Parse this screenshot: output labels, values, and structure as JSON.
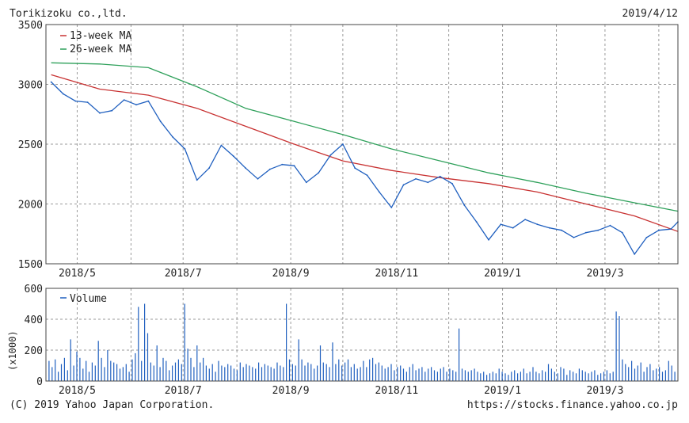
{
  "header": {
    "company": "Torikizoku co.,ltd.",
    "date": "2019/4/12"
  },
  "footer": {
    "copyright": "(C) 2019 Yahoo Japan Corporation.",
    "url": "https://stocks.finance.yahoo.co.jp"
  },
  "colors": {
    "price": "#1f5fbf",
    "ma13": "#c83232",
    "ma26": "#2ea05a",
    "volume": "#1f5fbf",
    "grid": "#9a9a9a",
    "frame": "#444444"
  },
  "chart_data": [
    {
      "type": "line",
      "x_tick_labels": [
        "2018/5",
        "2018/7",
        "2018/9",
        "2018/11",
        "2019/1",
        "2019/3"
      ],
      "yticks": [
        "1500",
        "2000",
        "2500",
        "3000",
        "3500"
      ],
      "ylim": [
        1500,
        3500
      ],
      "legend_position": "top-left",
      "grid": true,
      "series": [
        {
          "name": "price",
          "dates": [
            "2018/4/16",
            "2018/4/23",
            "2018/4/30",
            "2018/5/7",
            "2018/5/14",
            "2018/5/21",
            "2018/5/28",
            "2018/6/4",
            "2018/6/11",
            "2018/6/18",
            "2018/6/25",
            "2018/7/2",
            "2018/7/9",
            "2018/7/16",
            "2018/7/23",
            "2018/7/30",
            "2018/8/6",
            "2018/8/13",
            "2018/8/20",
            "2018/8/27",
            "2018/9/3",
            "2018/9/10",
            "2018/9/17",
            "2018/9/24",
            "2018/10/1",
            "2018/10/8",
            "2018/10/15",
            "2018/10/22",
            "2018/10/29",
            "2018/11/5",
            "2018/11/12",
            "2018/11/19",
            "2018/11/26",
            "2018/12/3",
            "2018/12/10",
            "2018/12/17",
            "2018/12/24",
            "2018/12/31",
            "2019/1/7",
            "2019/1/14",
            "2019/1/21",
            "2019/1/28",
            "2019/2/4",
            "2019/2/11",
            "2019/2/18",
            "2019/2/25",
            "2019/3/4",
            "2019/3/11",
            "2019/3/18",
            "2019/3/25",
            "2019/4/1",
            "2019/4/8",
            "2019/4/12"
          ],
          "values": [
            3020,
            2920,
            2860,
            2850,
            2760,
            2780,
            2870,
            2830,
            2860,
            2690,
            2560,
            2460,
            2200,
            2300,
            2490,
            2400,
            2300,
            2210,
            2290,
            2330,
            2320,
            2180,
            2260,
            2410,
            2500,
            2300,
            2240,
            2100,
            1970,
            2160,
            2210,
            2180,
            2230,
            2170,
            1990,
            1850,
            1700,
            1830,
            1800,
            1870,
            1830,
            1800,
            1780,
            1720,
            1760,
            1780,
            1820,
            1760,
            1580,
            1720,
            1780,
            1790,
            1850
          ]
        },
        {
          "name": "13-week MA",
          "dates": [
            "2018/4/16",
            "2018/5/14",
            "2018/6/11",
            "2018/7/9",
            "2018/8/6",
            "2018/9/3",
            "2018/10/1",
            "2018/10/29",
            "2018/11/26",
            "2018/12/24",
            "2019/1/21",
            "2019/2/18",
            "2019/3/18",
            "2019/4/12"
          ],
          "values": [
            3080,
            2960,
            2910,
            2800,
            2650,
            2500,
            2360,
            2280,
            2220,
            2170,
            2100,
            2000,
            1900,
            1770
          ]
        },
        {
          "name": "26-week MA",
          "dates": [
            "2018/4/16",
            "2018/5/14",
            "2018/6/11",
            "2018/7/9",
            "2018/8/6",
            "2018/9/3",
            "2018/10/1",
            "2018/10/29",
            "2018/11/26",
            "2018/12/24",
            "2019/1/21",
            "2019/2/18",
            "2019/3/18",
            "2019/4/12"
          ],
          "values": [
            3180,
            3170,
            3140,
            2980,
            2800,
            2690,
            2580,
            2460,
            2360,
            2260,
            2180,
            2090,
            2010,
            1940
          ]
        }
      ]
    },
    {
      "type": "bar",
      "x_tick_labels": [
        "2018/5",
        "2018/7",
        "2018/9",
        "2018/11",
        "2019/1",
        "2019/3"
      ],
      "yticks": [
        "0",
        "200",
        "400",
        "600"
      ],
      "ylabel": "(x1000)",
      "ylim": [
        0,
        600
      ],
      "legend_position": "top-left",
      "grid": true,
      "series": [
        {
          "name": "Volume",
          "values": [
            130,
            90,
            140,
            60,
            110,
            150,
            70,
            270,
            100,
            190,
            150,
            80,
            130,
            60,
            120,
            100,
            260,
            150,
            90,
            200,
            130,
            120,
            110,
            80,
            90,
            110,
            60,
            140,
            180,
            480,
            130,
            500,
            310,
            120,
            100,
            230,
            90,
            150,
            130,
            70,
            100,
            120,
            140,
            110,
            500,
            210,
            150,
            90,
            230,
            120,
            150,
            100,
            80,
            110,
            60,
            130,
            100,
            90,
            110,
            100,
            80,
            70,
            120,
            90,
            110,
            100,
            90,
            80,
            120,
            90,
            110,
            100,
            90,
            80,
            120,
            100,
            90,
            500,
            140,
            110,
            100,
            270,
            140,
            100,
            120,
            110,
            80,
            100,
            230,
            120,
            110,
            90,
            250,
            110,
            140,
            100,
            120,
            140,
            90,
            110,
            80,
            90,
            130,
            90,
            140,
            150,
            110,
            120,
            100,
            80,
            90,
            110,
            70,
            90,
            100,
            80,
            60,
            90,
            110,
            70,
            80,
            90,
            60,
            80,
            90,
            70,
            60,
            80,
            90,
            60,
            80,
            70,
            60,
            340,
            80,
            70,
            60,
            70,
            80,
            60,
            50,
            60,
            40,
            50,
            60,
            50,
            80,
            60,
            50,
            40,
            60,
            70,
            50,
            60,
            80,
            50,
            60,
            90,
            60,
            50,
            70,
            60,
            110,
            80,
            60,
            50,
            90,
            80,
            40,
            70,
            60,
            50,
            80,
            70,
            60,
            50,
            60,
            70,
            40,
            50,
            60,
            70,
            50,
            60,
            450,
            420,
            140,
            110,
            90,
            130,
            80,
            100,
            120,
            60,
            90,
            110,
            70,
            80,
            90,
            60,
            70,
            130,
            100,
            60
          ]
        }
      ]
    }
  ]
}
